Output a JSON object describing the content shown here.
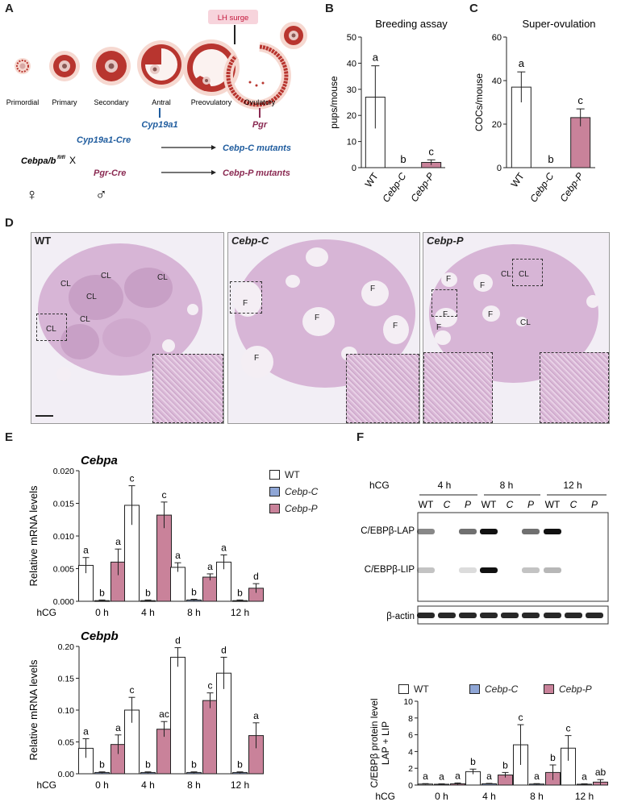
{
  "panels": {
    "A": "A",
    "B": "B",
    "C": "C",
    "D": "D",
    "E": "E",
    "F": "F"
  },
  "panelA": {
    "lh_surge": "LH surge",
    "stages": [
      "Primordial",
      "Primary",
      "Secondary",
      "Antral",
      "Preovulatory",
      "Ovulatory"
    ],
    "cyp19a1": "Cyp19a1",
    "pgr": "Pgr",
    "cebpab": "Cebpa/b",
    "flfl": "fl/fl",
    "x": "X",
    "cyp19a1_cre": "Cyp19a1-Cre",
    "pgr_cre": "Pgr-Cre",
    "cebp_c_mutants": "Cebp-C mutants",
    "cebp_p_mutants": "Cebp-P mutants",
    "female": "♀",
    "male": "♂"
  },
  "panelD": {
    "wt": "WT",
    "cebp_c": "Cebp-C",
    "cebp_p": "Cebp-P",
    "cl": "CL",
    "f": "F"
  },
  "panelF_blot": {
    "hcg": "hCG",
    "times": [
      "4 h",
      "8 h",
      "12 h"
    ],
    "lanes": [
      "WT",
      "C",
      "P",
      "WT",
      "C",
      "P",
      "WT",
      "C",
      "P"
    ],
    "bands": [
      "C/EBPβ-LAP",
      "C/EBPβ-LIP",
      "β-actin"
    ]
  },
  "colors": {
    "wt": "#ffffff",
    "cebp_c": "#8fa6d6",
    "cebp_p": "#c9829a"
  },
  "chart_data": [
    {
      "id": "B",
      "type": "bar",
      "title": "Breeding assay",
      "ylabel": "pups/mouse",
      "categories": [
        "WT",
        "Cebp-C",
        "Cebp-P"
      ],
      "values": [
        27,
        0,
        2
      ],
      "err": [
        12,
        0,
        1
      ],
      "ylim": [
        0,
        50
      ],
      "yticks": [
        "0",
        "10",
        "20",
        "30",
        "40",
        "50"
      ],
      "letters": [
        "a",
        "b",
        "c"
      ]
    },
    {
      "id": "C",
      "type": "bar",
      "title": "Super-ovulation",
      "ylabel": "COCs/mouse",
      "categories": [
        "WT",
        "Cebp-C",
        "Cebp-P"
      ],
      "values": [
        37,
        0,
        23
      ],
      "err": [
        7,
        0,
        4
      ],
      "ylim": [
        0,
        60
      ],
      "yticks": [
        "0",
        "20",
        "40",
        "60"
      ],
      "letters": [
        "a",
        "b",
        "c"
      ]
    },
    {
      "id": "E1",
      "type": "bar",
      "title": "Cebpa",
      "ylabel": "Relative mRNA levels",
      "xprefix": "hCG",
      "categories": [
        "0 h",
        "4 h",
        "8 h",
        "12 h"
      ],
      "yticks": [
        "0.000",
        "0.005",
        "0.010",
        "0.015",
        "0.020"
      ],
      "ylim": [
        0,
        0.02
      ],
      "series": [
        {
          "name": "WT",
          "values": [
            0.0055,
            0.0147,
            0.0052,
            0.006
          ],
          "err": [
            0.0012,
            0.003,
            0.0007,
            0.0011
          ],
          "letters": [
            "a",
            "c",
            "a",
            "a"
          ]
        },
        {
          "name": "Cebp-C",
          "values": [
            0.0001,
            0.0001,
            0.0002,
            0.0001
          ],
          "err": [
            0.0001,
            0.0001,
            0.0001,
            0.0001
          ],
          "letters": [
            "b",
            "b",
            "b",
            "b"
          ]
        },
        {
          "name": "Cebp-P",
          "values": [
            0.006,
            0.0132,
            0.0037,
            0.002
          ],
          "err": [
            0.002,
            0.002,
            0.0005,
            0.0007
          ],
          "letters": [
            "a",
            "c",
            "a",
            "d"
          ]
        }
      ]
    },
    {
      "id": "E2",
      "type": "bar",
      "title": "Cebpb",
      "ylabel": "Relative mRNA levels",
      "xprefix": "hCG",
      "categories": [
        "0 h",
        "4 h",
        "8 h",
        "12 h"
      ],
      "yticks": [
        "0.00",
        "0.05",
        "0.10",
        "0.15",
        "0.20"
      ],
      "ylim": [
        0,
        0.2
      ],
      "series": [
        {
          "name": "WT",
          "values": [
            0.04,
            0.1,
            0.183,
            0.158
          ],
          "err": [
            0.015,
            0.02,
            0.015,
            0.025
          ],
          "letters": [
            "a",
            "c",
            "d",
            "d"
          ]
        },
        {
          "name": "Cebp-C",
          "values": [
            0.002,
            0.002,
            0.002,
            0.002
          ],
          "err": [
            0.001,
            0.001,
            0.001,
            0.001
          ],
          "letters": [
            "b",
            "b",
            "b",
            "b"
          ]
        },
        {
          "name": "Cebp-P",
          "values": [
            0.046,
            0.07,
            0.115,
            0.06
          ],
          "err": [
            0.015,
            0.012,
            0.012,
            0.02
          ],
          "letters": [
            "a",
            "ac",
            "c",
            "a"
          ]
        }
      ]
    },
    {
      "id": "F2",
      "type": "bar",
      "ylabel": "C/EBPβ protein level LAP + LIP",
      "ylabel_lines": [
        "C/EBPβ protein level",
        "LAP + LIP"
      ],
      "xprefix": "hCG",
      "categories": [
        "0 h",
        "4 h",
        "8 h",
        "12 h"
      ],
      "yticks": [
        "0",
        "2",
        "4",
        "6",
        "8",
        "10"
      ],
      "ylim": [
        0,
        10
      ],
      "series": [
        {
          "name": "WT",
          "values": [
            0.12,
            1.6,
            4.8,
            4.4
          ],
          "err": [
            0.05,
            0.3,
            2.4,
            1.5
          ],
          "letters": [
            "a",
            "b",
            "c",
            "c"
          ]
        },
        {
          "name": "Cebp-C",
          "values": [
            0.1,
            0.15,
            0.12,
            0.1
          ],
          "err": [
            0.05,
            0.05,
            0.05,
            0.05
          ],
          "letters": [
            "a",
            "a",
            "a",
            "a"
          ]
        },
        {
          "name": "Cebp-P",
          "values": [
            0.15,
            1.2,
            1.5,
            0.35
          ],
          "err": [
            0.1,
            0.3,
            0.9,
            0.3
          ],
          "letters": [
            "a",
            "b",
            "b",
            "ab"
          ]
        }
      ]
    }
  ],
  "legend": [
    "WT",
    "Cebp-C",
    "Cebp-P"
  ]
}
